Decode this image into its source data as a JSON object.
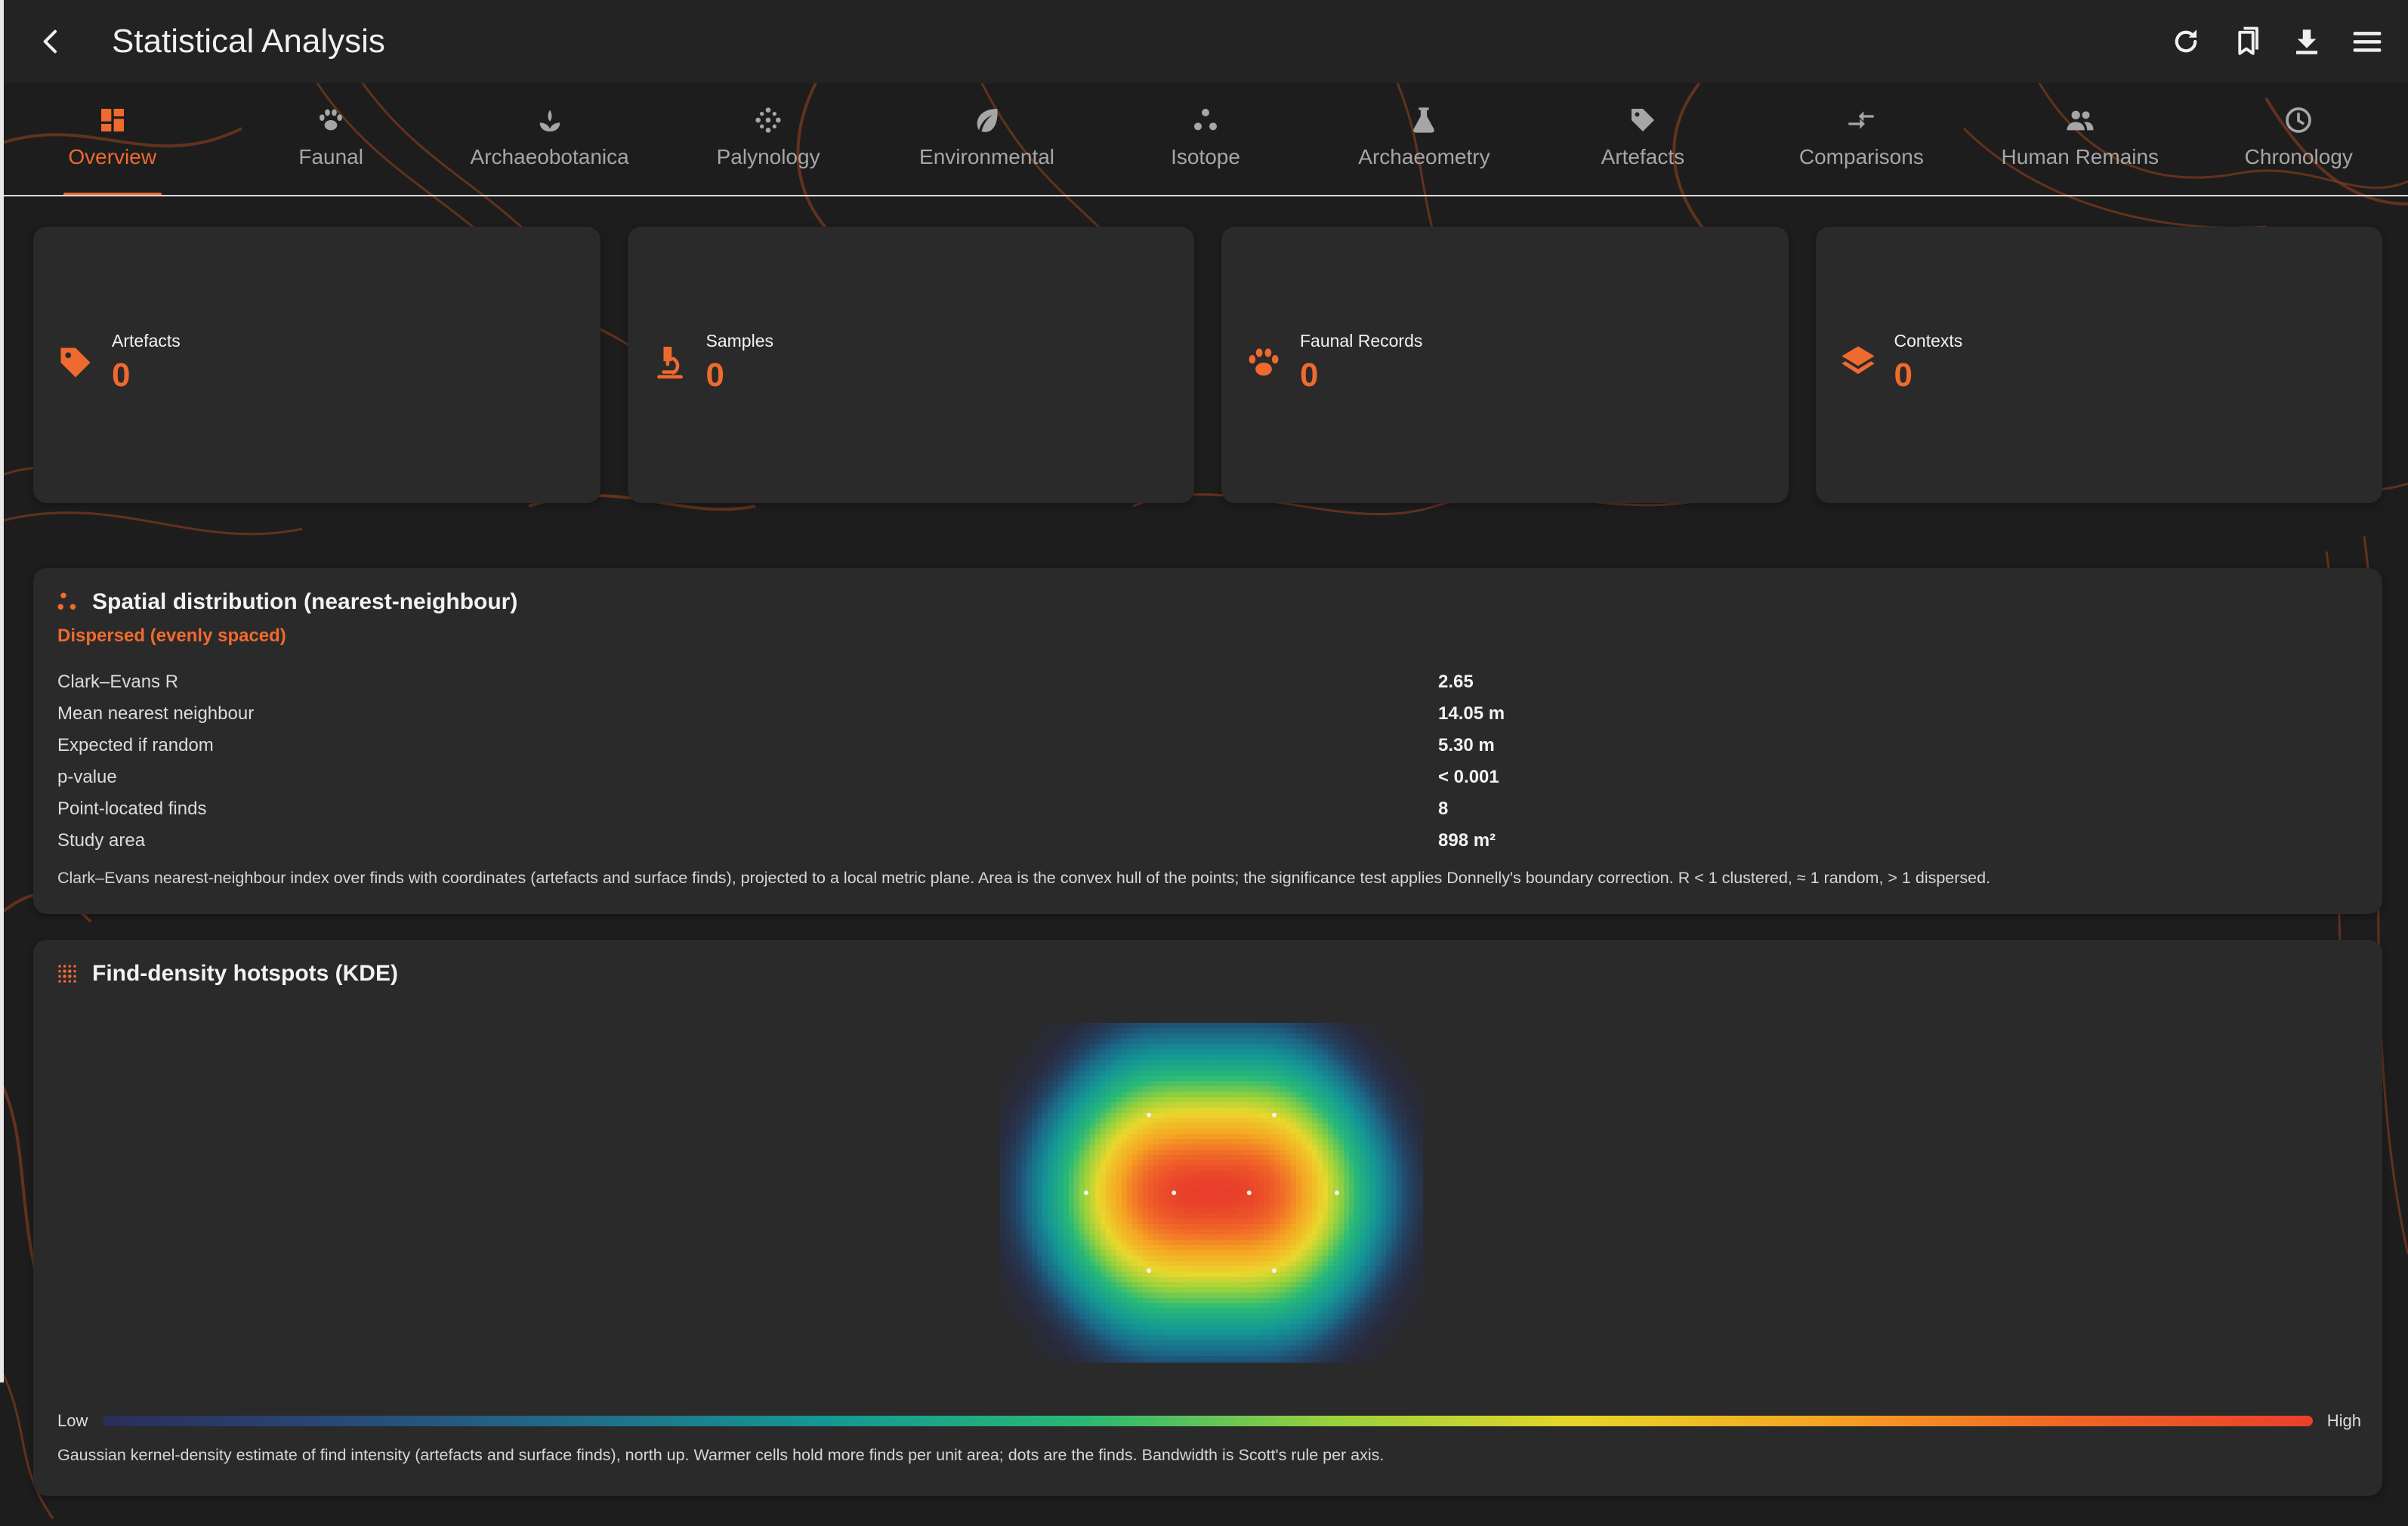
{
  "app": {
    "title": "Statistical Analysis"
  },
  "tabs": [
    {
      "label": "Overview",
      "icon": "dashboard-icon",
      "active": true
    },
    {
      "label": "Faunal",
      "icon": "paw-icon"
    },
    {
      "label": "Archaeobotanica",
      "icon": "sprout-icon"
    },
    {
      "label": "Palynology",
      "icon": "pollen-dots-icon"
    },
    {
      "label": "Environmental",
      "icon": "leaf-icon"
    },
    {
      "label": "Isotope",
      "icon": "isotope-dots-icon"
    },
    {
      "label": "Archaeometry",
      "icon": "flask-icon"
    },
    {
      "label": "Artefacts",
      "icon": "tag-icon"
    },
    {
      "label": "Comparisons",
      "icon": "compare-arrows-icon"
    },
    {
      "label": "Human Remains",
      "icon": "people-icon"
    },
    {
      "label": "Chronology",
      "icon": "clock-icon"
    }
  ],
  "cards": [
    {
      "label": "Artefacts",
      "value": "0",
      "icon": "tag-icon"
    },
    {
      "label": "Samples",
      "value": "0",
      "icon": "microscope-icon"
    },
    {
      "label": "Faunal Records",
      "value": "0",
      "icon": "paw-icon"
    },
    {
      "label": "Contexts",
      "value": "0",
      "icon": "layers-icon"
    }
  ],
  "spatial": {
    "title": "Spatial distribution (nearest-neighbour)",
    "pattern": "Dispersed (evenly spaced)",
    "rows": [
      {
        "label": "Clark–Evans R",
        "value": "2.65"
      },
      {
        "label": "Mean nearest neighbour",
        "value": "14.05 m"
      },
      {
        "label": "Expected if random",
        "value": "5.30 m"
      },
      {
        "label": "p-value",
        "value": "< 0.001"
      },
      {
        "label": "Point-located finds",
        "value": "8"
      },
      {
        "label": "Study area",
        "value": "898 m²"
      }
    ],
    "note": "Clark–Evans nearest-neighbour index over finds with coordinates (artefacts and surface finds), projected to a local metric plane. Area is the convex hull of the points; the significance test applies Donnelly's boundary correction. R < 1 clustered, ≈ 1 random, > 1 dispersed."
  },
  "kde": {
    "title": "Find-density hotspots (KDE)",
    "legend_low": "Low",
    "legend_high": "High",
    "note": "Gaussian kernel-density estimate of find intensity (artefacts and surface finds), north up. Warmer cells hold more finds per unit area; dots are the finds. Bandwidth is Scott's rule per axis.",
    "finds": [
      {
        "x": -1,
        "y": 1
      },
      {
        "x": 1,
        "y": 1
      },
      {
        "x": -2,
        "y": 0
      },
      {
        "x": -0.6,
        "y": 0
      },
      {
        "x": 0.6,
        "y": 0
      },
      {
        "x": 2,
        "y": 0
      },
      {
        "x": -1,
        "y": -1
      },
      {
        "x": 1,
        "y": -1
      }
    ]
  },
  "colors": {
    "accent": "#ef6a2e",
    "surface": "#2a2a2a",
    "background": "#1d1d1d",
    "topo_line": "#7a3a1e"
  }
}
